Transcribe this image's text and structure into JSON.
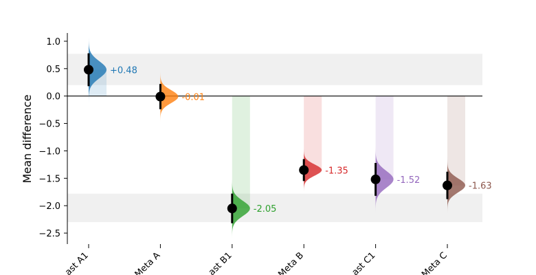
{
  "chart_data": {
    "type": "scatter",
    "title": "",
    "xlabel": "",
    "ylabel": "Mean difference",
    "ylim": [
      -2.7,
      1.15
    ],
    "yticks": [
      1.0,
      0.5,
      0.0,
      -0.5,
      -1.0,
      -1.5,
      -2.0,
      -2.5
    ],
    "ytick_labels": [
      "1.0",
      "0.5",
      "0.0",
      "−0.5",
      "−1.0",
      "−1.5",
      "−2.0",
      "−2.5"
    ],
    "zero_line": 0.0,
    "shaded_bands": [
      [
        0.2,
        0.77
      ],
      [
        -2.3,
        -1.78
      ]
    ],
    "band_color": "#f0f0f0",
    "categories": [
      "ast A1",
      "Meta A",
      "ast B1",
      "Meta B",
      "ast C1",
      "Meta C"
    ],
    "points": [
      {
        "value": 0.48,
        "ci": [
          0.18,
          0.78
        ],
        "label": "+0.48",
        "color": "#1f77b4",
        "direction": "up"
      },
      {
        "value": -0.01,
        "ci": [
          -0.24,
          0.22
        ],
        "label": "-0.01",
        "color": "#ff7f0e",
        "direction": "none"
      },
      {
        "value": -2.05,
        "ci": [
          -2.32,
          -1.78
        ],
        "label": "-2.05",
        "color": "#2ca02c",
        "direction": "up"
      },
      {
        "value": -1.35,
        "ci": [
          -1.55,
          -1.15
        ],
        "label": "-1.35",
        "color": "#d62728",
        "direction": "up"
      },
      {
        "value": -1.52,
        "ci": [
          -1.82,
          -1.22
        ],
        "label": "-1.52",
        "color": "#9467bd",
        "direction": "up"
      },
      {
        "value": -1.63,
        "ci": [
          -1.88,
          -1.38
        ],
        "label": "-1.63",
        "color": "#8c564b",
        "direction": "up"
      }
    ],
    "grid": false,
    "legend": "none"
  }
}
